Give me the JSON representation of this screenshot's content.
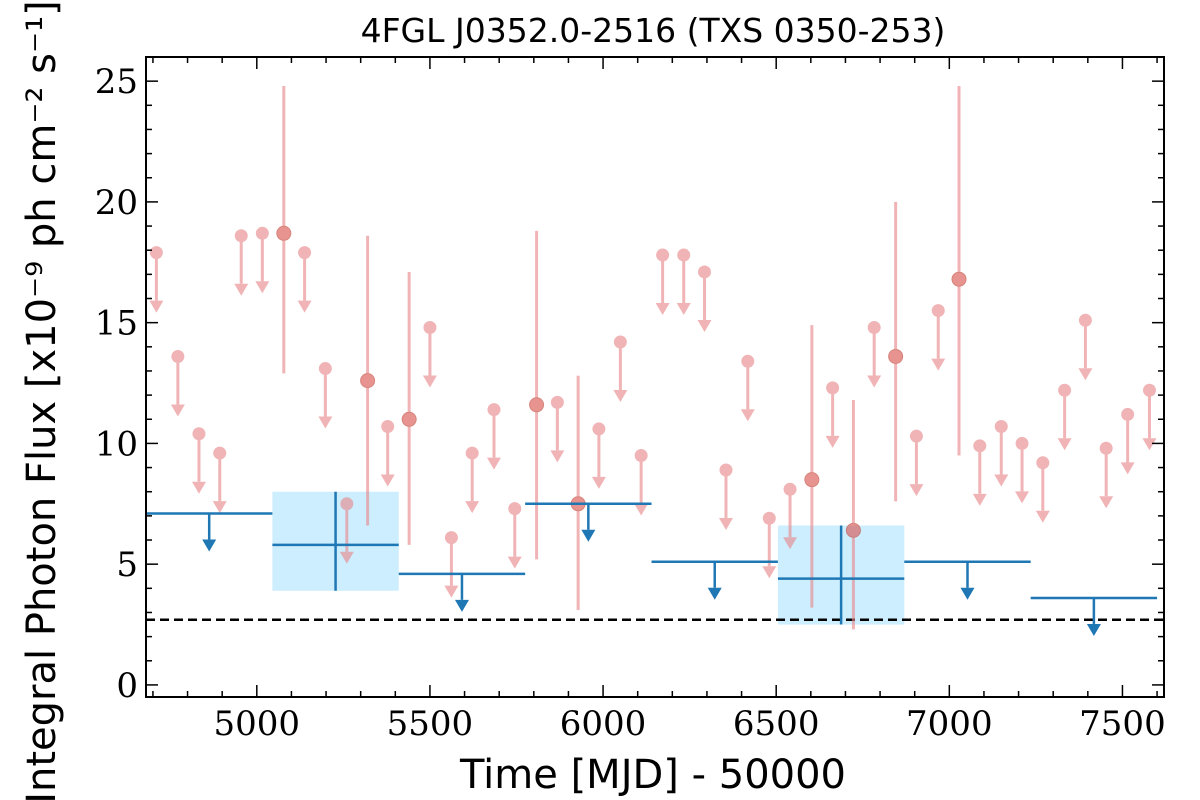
{
  "chart_data": {
    "type": "scatter",
    "title": "4FGL J0352.0-2516 (TXS 0350-253)",
    "xlabel": "Time [MJD] - 50000",
    "ylabel": "Integral Photon Flux [x10⁻⁹ ph cm⁻² s⁻¹]",
    "xlim": [
      4680,
      7620
    ],
    "ylim": [
      -0.5,
      26
    ],
    "xticks": [
      5000,
      5500,
      6000,
      6500,
      7000,
      7500
    ],
    "yticks": [
      0,
      5,
      10,
      15,
      20,
      25
    ],
    "xtick_labels": [
      "5000",
      "5500",
      "6000",
      "6500",
      "7000",
      "7500"
    ],
    "ytick_labels": [
      "0",
      "5",
      "10",
      "15",
      "20",
      "25"
    ],
    "grid": false,
    "colors": {
      "short_bins": "#e8878a",
      "long_bins": "#1f77b4",
      "error_band": "#cceeff",
      "reference_line": "#000000"
    },
    "reference_line": {
      "y": 2.7,
      "style": "dashed"
    },
    "short_bins": {
      "upper_limits": [
        {
          "x": 4710,
          "y": 17.9
        },
        {
          "x": 4772,
          "y": 13.6
        },
        {
          "x": 4833,
          "y": 10.4
        },
        {
          "x": 4893,
          "y": 9.6
        },
        {
          "x": 4955,
          "y": 18.6
        },
        {
          "x": 5016,
          "y": 18.7
        },
        {
          "x": 5138,
          "y": 17.9
        },
        {
          "x": 5198,
          "y": 13.1
        },
        {
          "x": 5260,
          "y": 7.5
        },
        {
          "x": 5378,
          "y": 10.7
        },
        {
          "x": 5500,
          "y": 14.8
        },
        {
          "x": 5562,
          "y": 6.1
        },
        {
          "x": 5622,
          "y": 9.6
        },
        {
          "x": 5685,
          "y": 11.4
        },
        {
          "x": 5745,
          "y": 7.3
        },
        {
          "x": 5868,
          "y": 11.7
        },
        {
          "x": 5988,
          "y": 10.6
        },
        {
          "x": 6050,
          "y": 14.2
        },
        {
          "x": 6110,
          "y": 9.5
        },
        {
          "x": 6172,
          "y": 17.8
        },
        {
          "x": 6233,
          "y": 17.8
        },
        {
          "x": 6293,
          "y": 17.1
        },
        {
          "x": 6355,
          "y": 8.9
        },
        {
          "x": 6418,
          "y": 13.4
        },
        {
          "x": 6480,
          "y": 6.9
        },
        {
          "x": 6540,
          "y": 8.1
        },
        {
          "x": 6663,
          "y": 12.3
        },
        {
          "x": 6783,
          "y": 14.8
        },
        {
          "x": 6905,
          "y": 10.3
        },
        {
          "x": 6968,
          "y": 15.5
        },
        {
          "x": 7088,
          "y": 9.9
        },
        {
          "x": 7150,
          "y": 10.7
        },
        {
          "x": 7210,
          "y": 10.0
        },
        {
          "x": 7270,
          "y": 9.2
        },
        {
          "x": 7333,
          "y": 12.2
        },
        {
          "x": 7393,
          "y": 15.1
        },
        {
          "x": 7453,
          "y": 9.8
        },
        {
          "x": 7515,
          "y": 11.2
        },
        {
          "x": 7578,
          "y": 12.2
        }
      ],
      "detections": [
        {
          "x": 5078,
          "y": 18.7,
          "lo": 12.9,
          "hi": 24.8
        },
        {
          "x": 5320,
          "y": 12.6,
          "lo": 6.6,
          "hi": 18.6
        },
        {
          "x": 5440,
          "y": 11.0,
          "lo": 5.8,
          "hi": 17.1
        },
        {
          "x": 5808,
          "y": 11.6,
          "lo": 5.2,
          "hi": 18.8
        },
        {
          "x": 5928,
          "y": 7.5,
          "lo": 3.1,
          "hi": 12.8
        },
        {
          "x": 6603,
          "y": 8.5,
          "lo": 3.2,
          "hi": 14.9
        },
        {
          "x": 6723,
          "y": 6.4,
          "lo": 2.3,
          "hi": 11.8
        },
        {
          "x": 6845,
          "y": 13.6,
          "lo": 7.6,
          "hi": 20.0
        },
        {
          "x": 7028,
          "y": 16.8,
          "lo": 9.5,
          "hi": 24.8
        }
      ]
    },
    "long_bins": {
      "upper_limits": [
        {
          "x0": 4680,
          "x1": 5045,
          "y": 7.1
        },
        {
          "x0": 5410,
          "x1": 5775,
          "y": 4.6
        },
        {
          "x0": 5775,
          "x1": 6140,
          "y": 7.5
        },
        {
          "x0": 6140,
          "x1": 6505,
          "y": 5.1
        },
        {
          "x0": 6870,
          "x1": 7235,
          "y": 5.1
        },
        {
          "x0": 7235,
          "x1": 7600,
          "y": 3.6
        }
      ],
      "detections": [
        {
          "x0": 5045,
          "x1": 5410,
          "y": 5.8,
          "lo": 3.9,
          "hi": 8.0
        },
        {
          "x0": 6505,
          "x1": 6870,
          "y": 4.4,
          "lo": 2.5,
          "hi": 6.6
        }
      ]
    }
  }
}
